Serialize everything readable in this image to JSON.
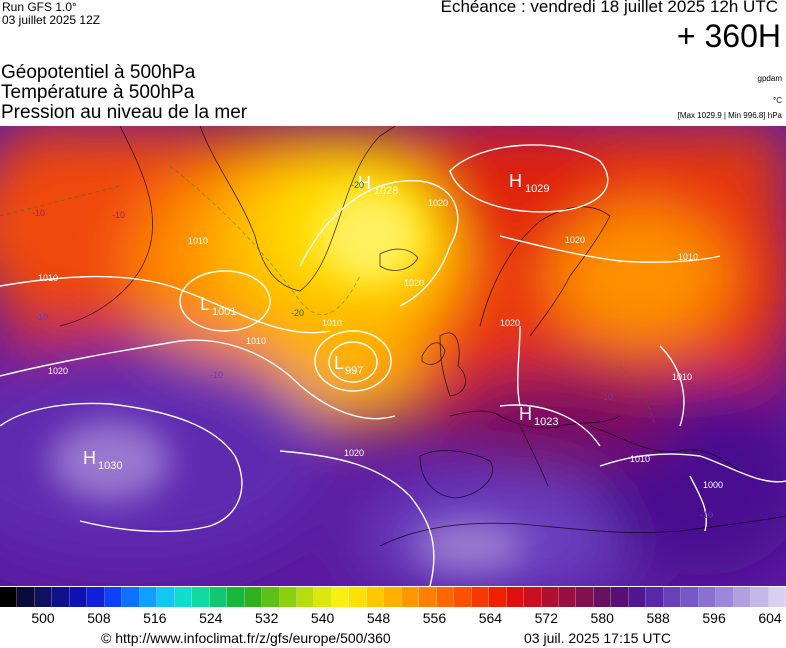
{
  "header": {
    "run": "Run GFS 1.0°",
    "run_date": "03 juillet 2025 12Z",
    "titles": [
      "Géopotentiel à 500hPa",
      "Température à 500hPa",
      "Pression au niveau de la mer"
    ],
    "echeance": "Echéance : vendredi 18 juillet 2025 12h UTC",
    "horizon": "+ 360H",
    "unit_geopotential": "gpdam",
    "unit_temperature": "°C",
    "pressure_extremes": "[Max 1029.9 | Min 996.8] hPa"
  },
  "map": {
    "pressure_centers": [
      {
        "type": "H",
        "value": "1028"
      },
      {
        "type": "H",
        "value": "1029"
      },
      {
        "type": "L",
        "value": "1001"
      },
      {
        "type": "L",
        "value": "997"
      },
      {
        "type": "H",
        "value": "1023"
      },
      {
        "type": "H",
        "value": "1030"
      }
    ],
    "isobar_labels": [
      "1020",
      "1010",
      "1010",
      "1010",
      "1010",
      "1020",
      "1020",
      "1020",
      "1010",
      "1020",
      "1010",
      "1010",
      "1000",
      "1020"
    ],
    "temperature_labels": [
      "-20",
      "-10",
      "-10",
      "-20",
      "-10",
      "-10",
      "-10",
      "-10"
    ]
  },
  "colorbar": {
    "colors": [
      "#000000",
      "#0a0a3c",
      "#101060",
      "#10108a",
      "#1010b4",
      "#1020dc",
      "#1040ff",
      "#1070ff",
      "#10a0ff",
      "#10c8f0",
      "#10dcd0",
      "#10d8a0",
      "#10c870",
      "#18b83c",
      "#30b020",
      "#5cc018",
      "#8cd010",
      "#b8dc10",
      "#dce610",
      "#f8f010",
      "#ffe000",
      "#ffc800",
      "#ffb000",
      "#ff9800",
      "#ff8000",
      "#ff6800",
      "#ff5000",
      "#f83800",
      "#f02000",
      "#e01010",
      "#c81020",
      "#b01030",
      "#981040",
      "#801050",
      "#681060",
      "#581078",
      "#501890",
      "#5828a8",
      "#6840b8",
      "#7858c8",
      "#8a70d0",
      "#9c88d8",
      "#b0a0e0",
      "#c4b8e8",
      "#d8d0f0"
    ],
    "ticks": [
      "500",
      "508",
      "516",
      "524",
      "532",
      "540",
      "548",
      "556",
      "564",
      "572",
      "580",
      "588",
      "596",
      "604"
    ]
  },
  "footer": {
    "copyright": "© http://www.infoclimat.fr/z/gfs/europe/500/360",
    "generated": "03 juil. 2025 17:15 UTC"
  }
}
